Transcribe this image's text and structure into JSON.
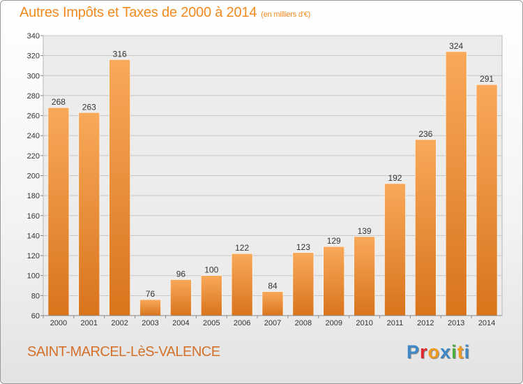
{
  "header": {
    "title": "Autres Impôts et Taxes de 2000 à 2014",
    "unit": "(en milliers d'€)"
  },
  "footer": {
    "city": "SAINT-MARCEL-LèS-VALENCE",
    "logo_letters": [
      "P",
      "r",
      "o",
      "x",
      "i",
      "t",
      "i"
    ],
    "logo_colors": [
      "#3f88c8",
      "#e3262f",
      "#f29a1e",
      "#3f88c8",
      "#4caf3c",
      "#f29a1e",
      "#3f88c8"
    ]
  },
  "colors": {
    "bar_light": "#f8a95a",
    "bar_dark": "#d9741c",
    "title": "#f08a1f"
  },
  "chart_data": {
    "type": "bar",
    "categories": [
      "2000",
      "2001",
      "2002",
      "2003",
      "2004",
      "2005",
      "2006",
      "2007",
      "2008",
      "2009",
      "2010",
      "2011",
      "2012",
      "2013",
      "2014"
    ],
    "values": [
      268,
      263,
      316,
      76,
      96,
      100,
      122,
      84,
      123,
      129,
      139,
      192,
      236,
      324,
      291
    ],
    "ylim": [
      60,
      340
    ],
    "yticks": [
      60,
      80,
      100,
      120,
      140,
      160,
      180,
      200,
      220,
      240,
      260,
      280,
      300,
      320,
      340
    ],
    "grid": true
  }
}
